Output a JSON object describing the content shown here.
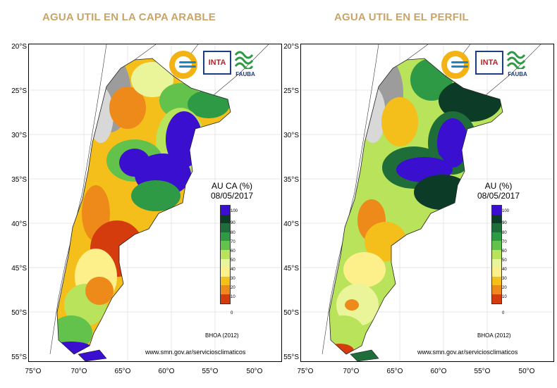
{
  "panels": [
    {
      "title": "AGUA UTIL EN LA CAPA ARABLE",
      "legend_title": "AU CA (%)",
      "date": "08/05/2017"
    },
    {
      "title": "AGUA UTIL EN EL PERFIL",
      "legend_title": "AU (%)",
      "date": "08/05/2017"
    }
  ],
  "legend": {
    "ticks": [
      "100",
      "90",
      "80",
      "70",
      "60",
      "50",
      "40",
      "30",
      "20",
      "10",
      "0"
    ],
    "colors": [
      "#3a0fd0",
      "#0c3c28",
      "#1f6e39",
      "#2e9a45",
      "#63c24b",
      "#b8e35a",
      "#eaf59a",
      "#fdf08a",
      "#f4bf1a",
      "#ee8a1a",
      "#d43b0d"
    ]
  },
  "latitudes": [
    "20°S",
    "25°S",
    "30°S",
    "35°S",
    "40°S",
    "45°S",
    "50°S",
    "55°S"
  ],
  "longitudes": [
    "75°O",
    "70°O",
    "65°O",
    "60°O",
    "55°O",
    "50°O"
  ],
  "source": "BHOA (2012)",
  "website": "www.smn.gov.ar/serviciosclimaticos",
  "logos": {
    "inta": "INTA",
    "fauba": "FAUBA"
  }
}
